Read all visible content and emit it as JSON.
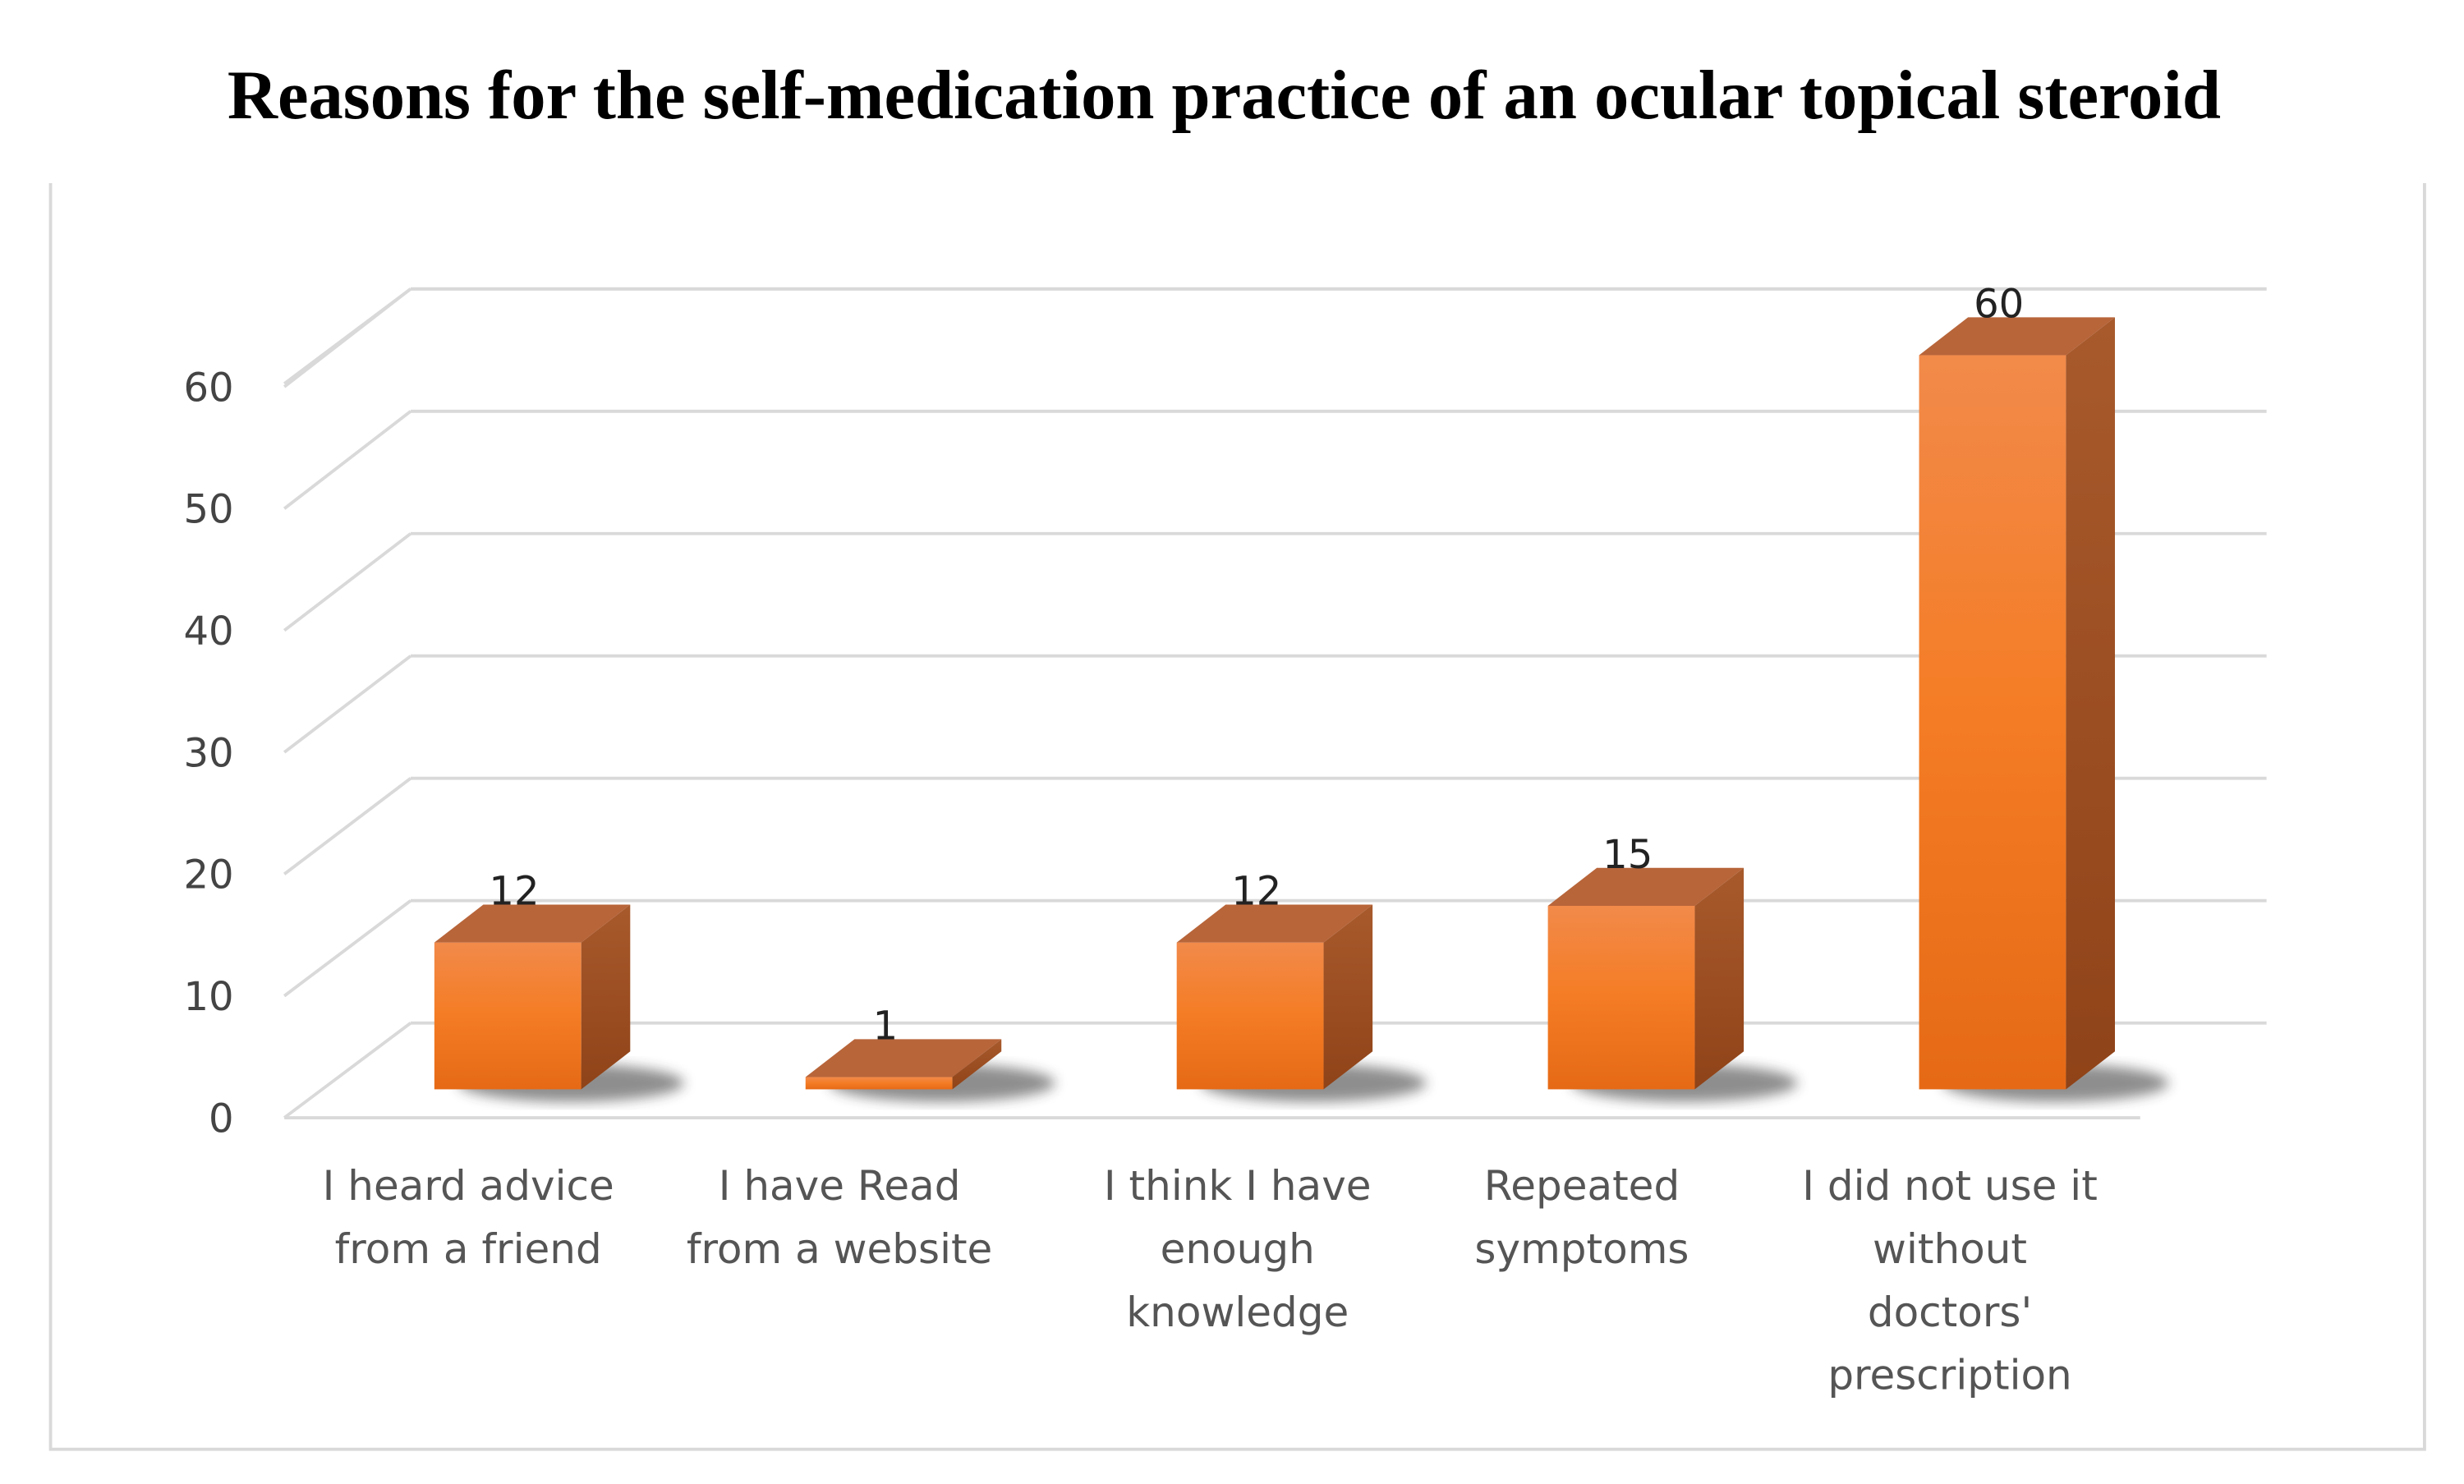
{
  "chart_data": {
    "type": "bar",
    "style": "3d-column",
    "title": "Reasons for the self-medication practice of an ocular topical steroid",
    "categories": [
      [
        "I heard advice",
        "from a friend"
      ],
      [
        "I have Read",
        "from a website"
      ],
      [
        "I think I have",
        "enough",
        "knowledge"
      ],
      [
        "Repeated",
        "symptoms"
      ],
      [
        "I did not use it",
        "without",
        "doctors'",
        "prescription"
      ]
    ],
    "values": [
      12,
      1,
      12,
      15,
      60
    ],
    "data_labels": [
      "12",
      "1",
      "12",
      "15",
      "60"
    ],
    "yticks": [
      "0",
      "10",
      "20",
      "30",
      "40",
      "50",
      "60"
    ],
    "ylim": [
      0,
      60
    ],
    "grid": true,
    "legend": "none",
    "colors": {
      "bar_front": "#f07a22",
      "bar_top": "#b8653a",
      "bar_side": "#a04e1f",
      "grid": "#d9d9d9"
    }
  }
}
